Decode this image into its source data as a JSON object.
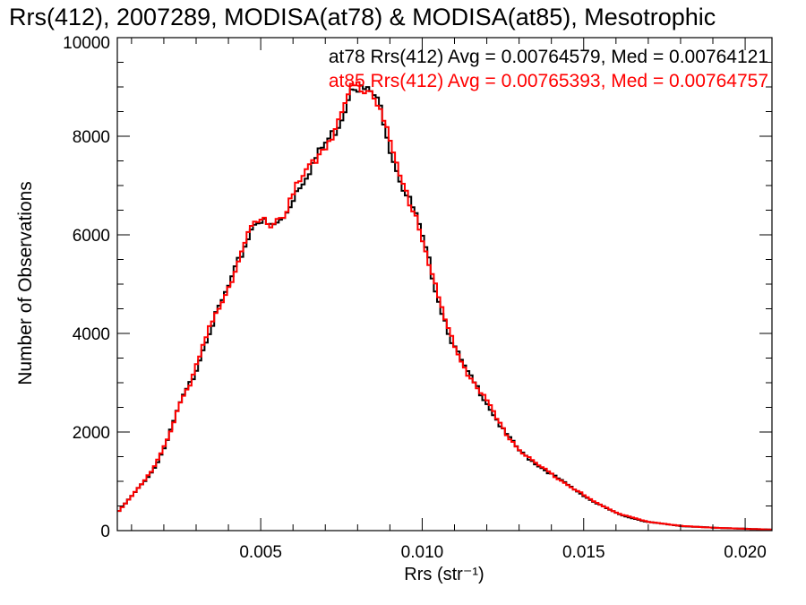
{
  "chart_data": {
    "type": "line",
    "style": "histogram-step",
    "title": "Rrs(412), 2007289, MODISA(at78) & MODISA(at85), Mesotrophic",
    "xlabel": "Rrs (str⁻¹)",
    "ylabel": "Number of Observations",
    "xlim": [
      0.00056,
      0.02083
    ],
    "ylim": [
      0,
      10000
    ],
    "xticks": [
      0.005,
      0.01,
      0.015,
      0.02
    ],
    "xtick_labels": [
      "0.005",
      "0.010",
      "0.015",
      "0.020"
    ],
    "yticks": [
      0,
      2000,
      4000,
      6000,
      8000,
      10000
    ],
    "ytick_labels": [
      "0",
      "2000",
      "4000",
      "6000",
      "8000",
      "10000"
    ],
    "x": [
      0.00056,
      0.00111,
      0.00167,
      0.00208,
      0.0025,
      0.00292,
      0.00333,
      0.00375,
      0.00417,
      0.00458,
      0.00486,
      0.00528,
      0.00569,
      0.00611,
      0.00653,
      0.00694,
      0.00736,
      0.00764,
      0.00783,
      0.00806,
      0.00847,
      0.00875,
      0.00903,
      0.00944,
      0.00978,
      0.01,
      0.01028,
      0.01056,
      0.01097,
      0.01139,
      0.01194,
      0.0125,
      0.01306,
      0.01361,
      0.01444,
      0.01528,
      0.01611,
      0.01694,
      0.01806,
      0.01917,
      0.02083
    ],
    "series": [
      {
        "name": "at78",
        "color": "#000000",
        "legend": "at78 Rrs(412) Avg = 0.00764579, Med = 0.00764121",
        "values": [
          360,
          775,
          1225,
          1765,
          2575,
          3120,
          3930,
          4560,
          5190,
          5910,
          6350,
          6150,
          6300,
          6900,
          7350,
          7800,
          8160,
          8610,
          9100,
          8970,
          8880,
          8520,
          7710,
          6900,
          6450,
          5910,
          5280,
          4560,
          3750,
          3210,
          2670,
          2040,
          1585,
          1315,
          955,
          595,
          325,
          180,
          90,
          55,
          20
        ]
      },
      {
        "name": "at85",
        "color": "#ff0000",
        "legend": "at85 Rrs(412) Avg = 0.00765393, Med = 0.00764757",
        "values": [
          360,
          790,
          1240,
          1780,
          2600,
          3140,
          3950,
          4600,
          5220,
          5930,
          6250,
          6250,
          6380,
          6950,
          7380,
          7760,
          8200,
          8650,
          9050,
          9000,
          8900,
          8560,
          7760,
          6920,
          6470,
          5930,
          5300,
          4580,
          3760,
          3220,
          2690,
          2050,
          1600,
          1320,
          965,
          600,
          340,
          185,
          92,
          55,
          20
        ]
      }
    ],
    "legend_position": "top-right"
  }
}
